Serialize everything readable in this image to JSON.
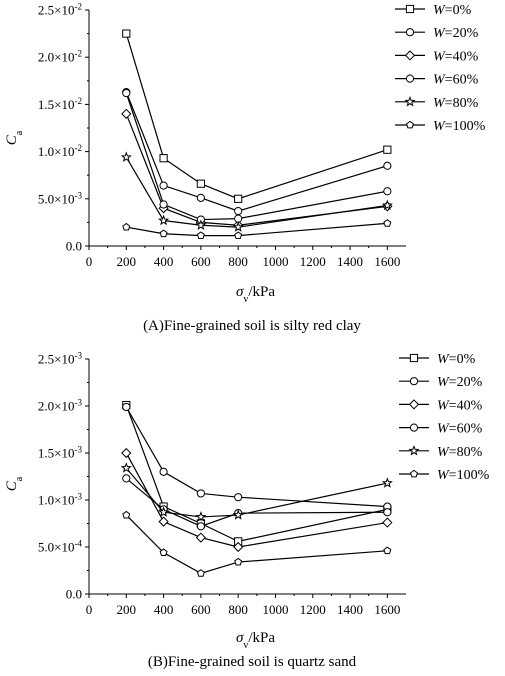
{
  "chart_data": [
    {
      "type": "line",
      "caption": "(A)Fine-grained soil is silty red clay",
      "xlabel": {
        "symbol": "σ",
        "sub": "v",
        "unit": "/kPa"
      },
      "ylabel": {
        "symbol": "C",
        "sub": "a"
      },
      "xlim": [
        0,
        1700
      ],
      "ylim": [
        0,
        0.025
      ],
      "xticks": [
        0,
        200,
        400,
        600,
        800,
        1000,
        1200,
        1400,
        1600
      ],
      "yticks": [
        {
          "value": 0,
          "mant": "0.0",
          "exp": ""
        },
        {
          "value": 0.005,
          "mant": "5.0×10",
          "exp": "-3"
        },
        {
          "value": 0.01,
          "mant": "1.0×10",
          "exp": "-2"
        },
        {
          "value": 0.015,
          "mant": "1.5×10",
          "exp": "-2"
        },
        {
          "value": 0.02,
          "mant": "2.0×10",
          "exp": "-2"
        },
        {
          "value": 0.025,
          "mant": "2.5×10",
          "exp": "-2"
        }
      ],
      "x": [
        200,
        400,
        600,
        800,
        1600
      ],
      "legend_position": "top-right, outside",
      "grid": false,
      "series": [
        {
          "name": "W=0%",
          "marker": "square",
          "values": [
            0.0225,
            0.0093,
            0.0066,
            0.005,
            0.0102
          ]
        },
        {
          "name": "W=20%",
          "marker": "circle",
          "values": [
            0.0163,
            0.0064,
            0.0051,
            0.0037,
            0.0085
          ]
        },
        {
          "name": "W=40%",
          "marker": "diamond",
          "values": [
            0.014,
            0.004,
            0.0025,
            0.0022,
            0.0042
          ]
        },
        {
          "name": "W=60%",
          "marker": "circle",
          "values": [
            0.0162,
            0.0044,
            0.0028,
            0.0029,
            0.0058
          ]
        },
        {
          "name": "W=80%",
          "marker": "star",
          "values": [
            0.0094,
            0.0027,
            0.0022,
            0.002,
            0.0043
          ]
        },
        {
          "name": "W=100%",
          "marker": "pentagon",
          "values": [
            0.002,
            0.0013,
            0.0011,
            0.0011,
            0.0024
          ]
        }
      ]
    },
    {
      "type": "line",
      "caption": "(B)Fine-grained soil is quartz sand",
      "xlabel": {
        "symbol": "σ",
        "sub": "v",
        "unit": "/kPa"
      },
      "ylabel": {
        "symbol": "C",
        "sub": "a"
      },
      "xlim": [
        0,
        1700
      ],
      "ylim": [
        0,
        0.0025
      ],
      "xticks": [
        0,
        200,
        400,
        600,
        800,
        1000,
        1200,
        1400,
        1600
      ],
      "yticks": [
        {
          "value": 0,
          "mant": "0.0",
          "exp": ""
        },
        {
          "value": 0.0005,
          "mant": "5.0×10",
          "exp": "-4"
        },
        {
          "value": 0.001,
          "mant": "1.0×10",
          "exp": "-3"
        },
        {
          "value": 0.0015,
          "mant": "1.5×10",
          "exp": "-3"
        },
        {
          "value": 0.002,
          "mant": "2.0×10",
          "exp": "-3"
        },
        {
          "value": 0.0025,
          "mant": "2.5×10",
          "exp": "-3"
        }
      ],
      "x": [
        200,
        400,
        600,
        800,
        1600
      ],
      "legend_position": "top-right, outside",
      "grid": false,
      "series": [
        {
          "name": "W=0%",
          "marker": "square",
          "values": [
            0.00201,
            0.00093,
            0.00075,
            0.00056,
            0.0009
          ]
        },
        {
          "name": "W=20%",
          "marker": "circle",
          "values": [
            0.00199,
            0.0013,
            0.00107,
            0.00103,
            0.00093
          ]
        },
        {
          "name": "W=40%",
          "marker": "diamond",
          "values": [
            0.0015,
            0.00077,
            0.0006,
            0.0005,
            0.00076
          ]
        },
        {
          "name": "W=60%",
          "marker": "circle",
          "values": [
            0.00123,
            0.0009,
            0.00072,
            0.00086,
            0.00087
          ]
        },
        {
          "name": "W=80%",
          "marker": "star",
          "values": [
            0.00134,
            0.00087,
            0.00082,
            0.00084,
            0.00118
          ]
        },
        {
          "name": "W=100%",
          "marker": "pentagon",
          "values": [
            0.00084,
            0.00044,
            0.00022,
            0.00034,
            0.00046
          ]
        }
      ]
    }
  ]
}
